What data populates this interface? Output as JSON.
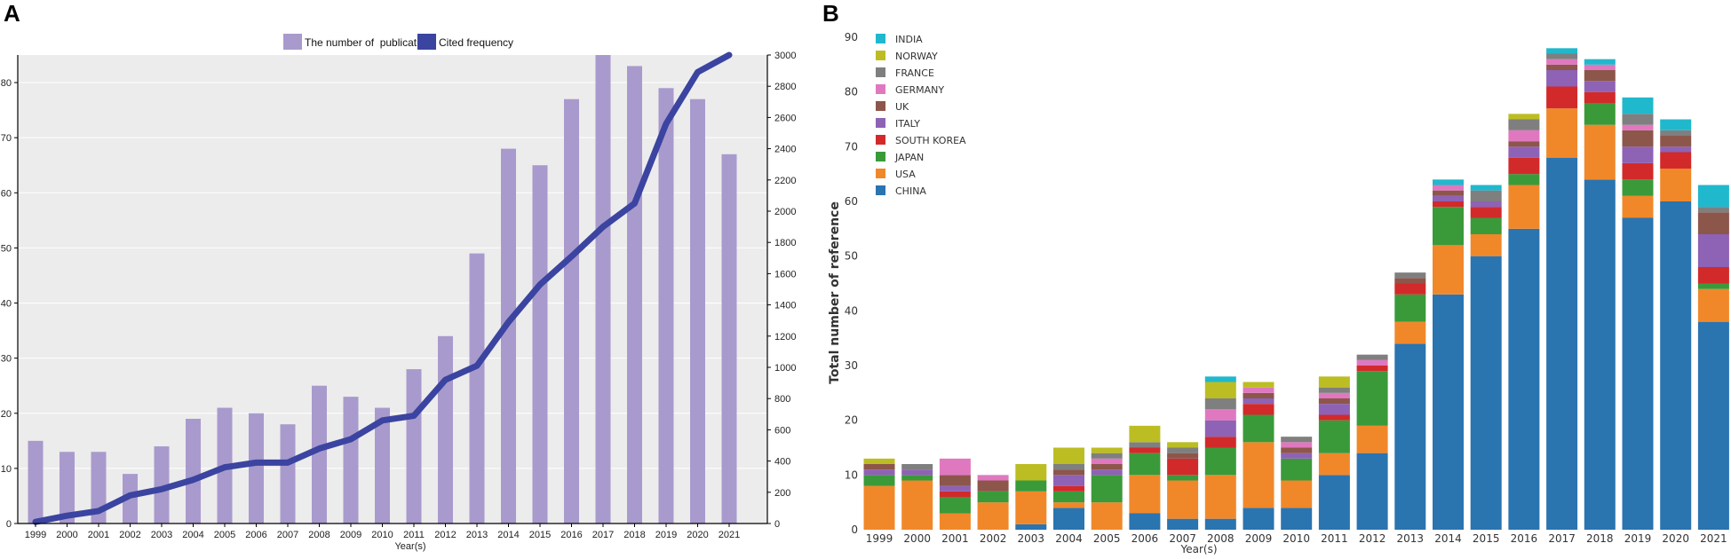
{
  "chart_data": [
    {
      "panel": "A",
      "type": "bar",
      "title": "",
      "xlabel": "Year(s)",
      "ylabel": "",
      "ylabel_right": "",
      "categories": [
        "1999",
        "2000",
        "2001",
        "2002",
        "2003",
        "2004",
        "2005",
        "2006",
        "2007",
        "2008",
        "2009",
        "2010",
        "2011",
        "2012",
        "2013",
        "2014",
        "2015",
        "2016",
        "2017",
        "2018",
        "2019",
        "2020",
        "2021"
      ],
      "ylim": [
        0,
        85
      ],
      "yticks": [
        0,
        10,
        20,
        30,
        40,
        50,
        60,
        70,
        80
      ],
      "y2lim": [
        0,
        3000
      ],
      "y2ticks": [
        0,
        200,
        400,
        600,
        800,
        1000,
        1200,
        1400,
        1600,
        1800,
        2000,
        2200,
        2400,
        2600,
        2800,
        3000
      ],
      "series": [
        {
          "name": "The number of  publications",
          "type": "bar",
          "color": "#a99acd",
          "values": [
            15,
            13,
            13,
            9,
            14,
            19,
            21,
            20,
            18,
            25,
            23,
            21,
            28,
            34,
            49,
            68,
            65,
            77,
            85,
            83,
            79,
            77,
            67
          ]
        },
        {
          "name": "Cited frequency",
          "type": "line",
          "axis": "right",
          "color": "#3b44a0",
          "values": [
            10,
            50,
            80,
            180,
            220,
            280,
            360,
            390,
            390,
            480,
            540,
            660,
            690,
            920,
            1010,
            1290,
            1530,
            1710,
            1900,
            2050,
            2560,
            2890,
            3000
          ]
        }
      ]
    },
    {
      "panel": "B",
      "type": "bar",
      "stacked": true,
      "title": "",
      "xlabel": "Year(s)",
      "ylabel": "Total number of reference",
      "categories": [
        "1999",
        "2000",
        "2001",
        "2002",
        "2003",
        "2004",
        "2005",
        "2006",
        "2007",
        "2008",
        "2009",
        "2010",
        "2011",
        "2012",
        "2013",
        "2014",
        "2015",
        "2016",
        "2017",
        "2018",
        "2019",
        "2020",
        "2021"
      ],
      "ylim": [
        0,
        90
      ],
      "yticks": [
        0,
        10,
        20,
        30,
        40,
        50,
        60,
        70,
        80,
        90
      ],
      "legend_order": [
        "INDIA",
        "NORWAY",
        "FRANCE",
        "GERMANY",
        "UK",
        "ITALY",
        "SOUTH KOREA",
        "JAPAN",
        "USA",
        "CHINA"
      ],
      "series": [
        {
          "name": "CHINA",
          "color": "#2a74b0",
          "values": [
            0,
            0,
            0,
            0,
            1,
            4,
            0,
            3,
            2,
            2,
            4,
            4,
            10,
            14,
            34,
            43,
            50,
            55,
            68,
            64,
            57,
            60,
            38
          ]
        },
        {
          "name": "USA",
          "color": "#f0882a",
          "values": [
            8,
            9,
            3,
            5,
            6,
            1,
            5,
            7,
            7,
            8,
            12,
            5,
            4,
            5,
            4,
            9,
            4,
            8,
            9,
            10,
            4,
            6,
            6
          ]
        },
        {
          "name": "JAPAN",
          "color": "#3a9a3a",
          "values": [
            2,
            1,
            3,
            2,
            2,
            2,
            5,
            4,
            1,
            5,
            5,
            4,
            6,
            10,
            5,
            7,
            3,
            2,
            0,
            4,
            3,
            0,
            1
          ]
        },
        {
          "name": "SOUTH KOREA",
          "color": "#d22a2a",
          "values": [
            0,
            0,
            1,
            0,
            0,
            1,
            0,
            1,
            3,
            2,
            2,
            0,
            1,
            1,
            2,
            1,
            2,
            3,
            4,
            2,
            3,
            3,
            3
          ]
        },
        {
          "name": "ITALY",
          "color": "#8e62b5",
          "values": [
            1,
            1,
            1,
            0,
            0,
            2,
            1,
            0,
            0,
            3,
            1,
            1,
            2,
            0,
            0,
            1,
            1,
            2,
            3,
            2,
            3,
            1,
            6
          ]
        },
        {
          "name": "UK",
          "color": "#8c564b",
          "values": [
            1,
            0,
            2,
            2,
            0,
            1,
            1,
            0,
            1,
            0,
            1,
            1,
            1,
            0,
            1,
            1,
            0,
            1,
            1,
            2,
            3,
            2,
            4
          ]
        },
        {
          "name": "GERMANY",
          "color": "#e078c0",
          "values": [
            0,
            0,
            3,
            1,
            0,
            0,
            1,
            0,
            0,
            2,
            1,
            1,
            1,
            1,
            0,
            1,
            0,
            2,
            1,
            1,
            1,
            0,
            0
          ]
        },
        {
          "name": "FRANCE",
          "color": "#7f7f7f",
          "values": [
            0,
            1,
            0,
            0,
            0,
            1,
            1,
            1,
            1,
            2,
            0,
            1,
            1,
            1,
            1,
            0,
            2,
            2,
            1,
            0,
            2,
            1,
            1
          ]
        },
        {
          "name": "NORWAY",
          "color": "#bcbd22",
          "values": [
            1,
            0,
            0,
            0,
            3,
            3,
            1,
            3,
            1,
            3,
            1,
            0,
            2,
            0,
            0,
            0,
            0,
            1,
            0,
            0,
            0,
            0,
            0
          ]
        },
        {
          "name": "INDIA",
          "color": "#20b8cc",
          "values": [
            0,
            0,
            0,
            0,
            0,
            0,
            0,
            0,
            0,
            1,
            0,
            0,
            0,
            0,
            0,
            1,
            1,
            0,
            1,
            1,
            3,
            2,
            4
          ]
        }
      ]
    }
  ]
}
